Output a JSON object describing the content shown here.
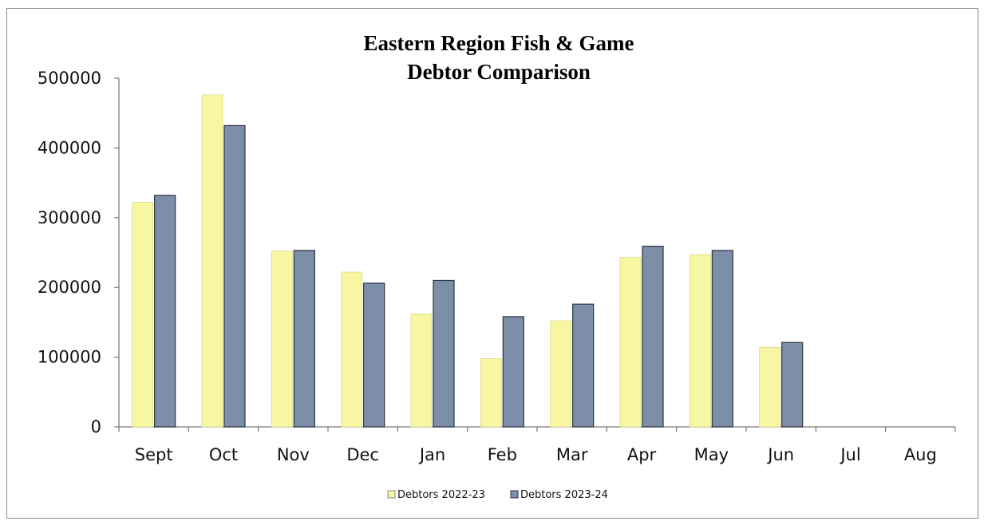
{
  "chart_data": {
    "type": "bar",
    "title_lines": [
      "Eastern Region Fish & Game",
      "Debtor Comparison"
    ],
    "xlabel": "",
    "ylabel": "",
    "categories": [
      "Sept",
      "Oct",
      "Nov",
      "Dec",
      "Jan",
      "Feb",
      "Mar",
      "Apr",
      "May",
      "Jun",
      "Jul",
      "Aug"
    ],
    "series": [
      {
        "name": "Debtors 2022-23",
        "color": "#f7f7a3",
        "values": [
          322000,
          476000,
          252000,
          222000,
          162000,
          98000,
          152000,
          243000,
          247000,
          114000,
          null,
          null
        ]
      },
      {
        "name": "Debtors 2023-24",
        "color": "#7c8ea8",
        "values": [
          332000,
          432000,
          253000,
          206000,
          210000,
          158000,
          176000,
          259000,
          253000,
          121000,
          null,
          null
        ]
      }
    ],
    "ylim": [
      0,
      500000
    ],
    "yticks": [
      "0",
      "100000",
      "200000",
      "300000",
      "400000",
      "500000"
    ],
    "grid": false,
    "legend": "bottom-center"
  }
}
